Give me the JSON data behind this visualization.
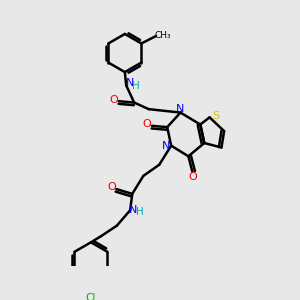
{
  "background_color": "#e8e8e8",
  "bond_color": "#000000",
  "bond_width": 1.8,
  "figsize": [
    3.0,
    3.0
  ],
  "dpi": 100,
  "colors": {
    "C": "#000000",
    "N": "#0000ee",
    "O": "#ee0000",
    "S": "#cccc00",
    "H": "#00aaaa",
    "Cl": "#00aa00"
  }
}
